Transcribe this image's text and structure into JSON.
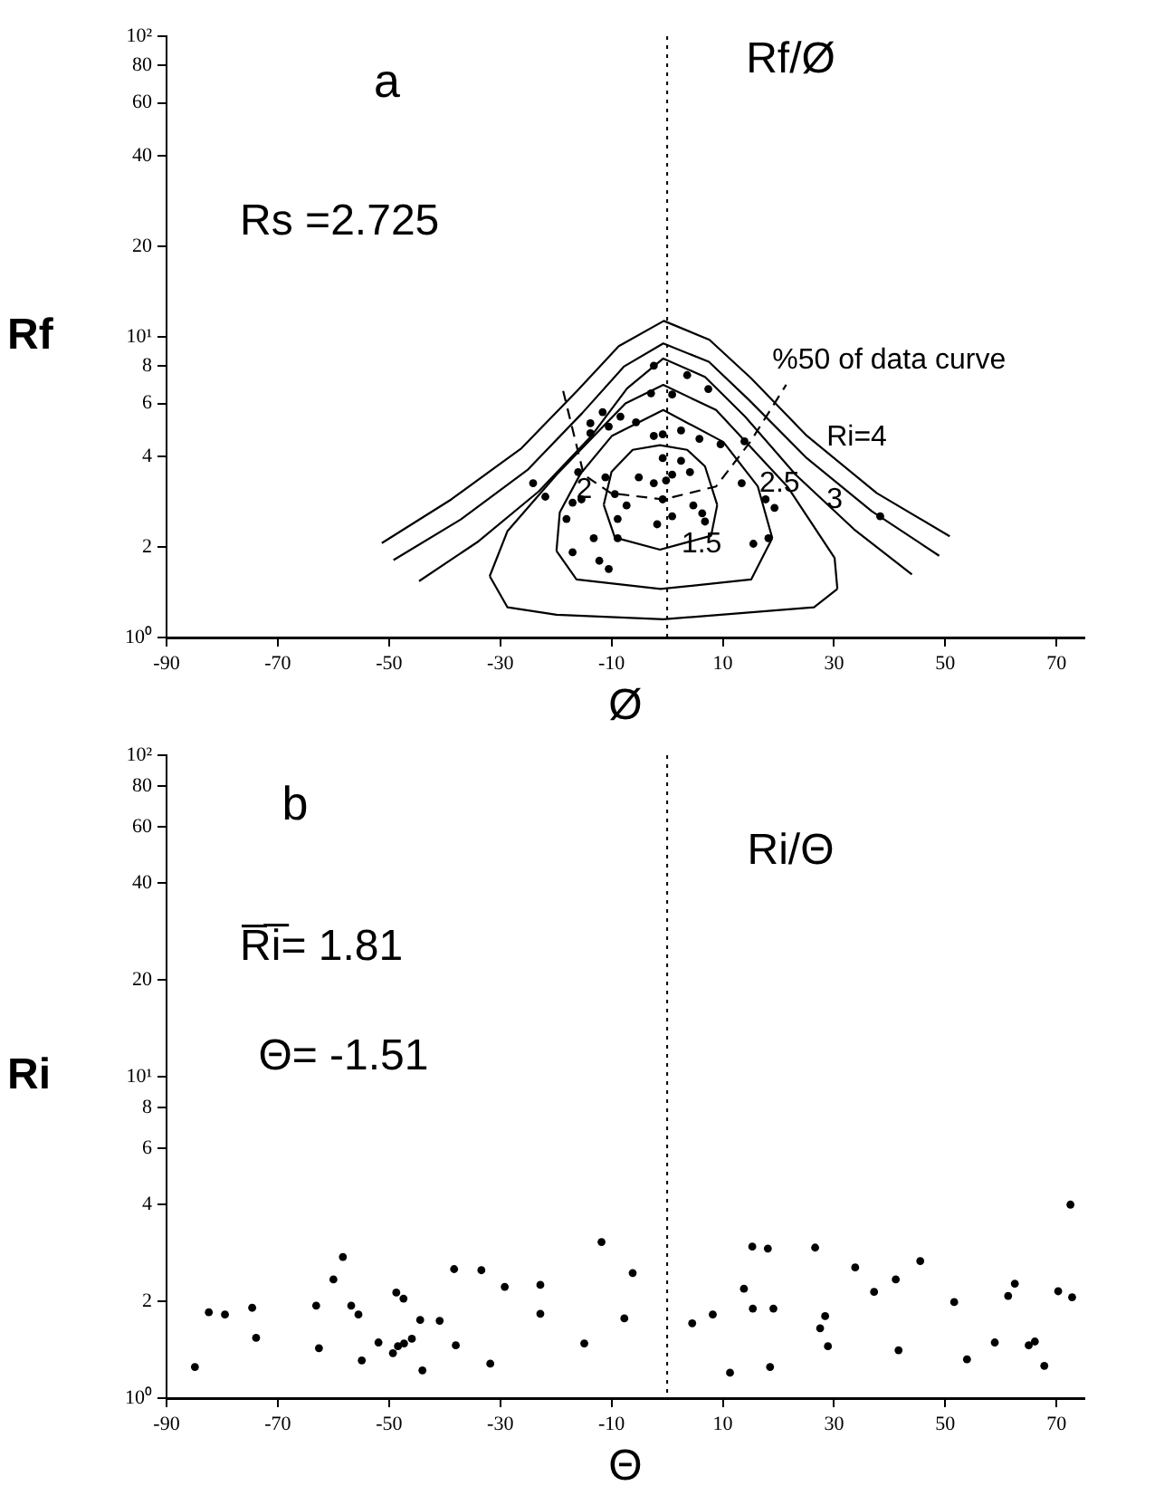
{
  "chart_data": [
    {
      "type": "scatter",
      "title": "Rf/Ø",
      "xlabel": "Ø",
      "ylabel": "Rf",
      "log": "y",
      "xlim": [
        -90,
        75
      ],
      "xticks": [
        -90,
        -70,
        -50,
        -30,
        -10,
        10,
        30,
        50,
        70
      ],
      "ylim": [
        1,
        100
      ],
      "yticks": [
        {
          "value": 1,
          "label": "10⁰"
        },
        2,
        4,
        6,
        8,
        {
          "value": 10,
          "label": "10¹"
        },
        20,
        40,
        60,
        80,
        {
          "value": 100,
          "label": "10²"
        }
      ],
      "ref_lines": [
        {
          "axis": "x",
          "value": 0,
          "line_style": "dotted"
        }
      ],
      "annotations": [
        "a",
        "Rs =2.725",
        "1.5",
        "2",
        "2.5",
        "3",
        "Ri=4",
        "%50 of data curve"
      ],
      "series": [
        {
          "marker": "circle",
          "color": "#000000",
          "x": [
            -2.4,
            3.6,
            7.4,
            -2.9,
            0.9,
            -11.6,
            -8.4,
            -13.8,
            -10.5,
            -5.6,
            -13.8,
            -2.4,
            -0.8,
            2.5,
            5.8,
            9.6,
            13.9,
            -24.1,
            -21.9,
            -17.0,
            -15.4,
            -18.1,
            -16.0,
            -11.1,
            -9.4,
            -7.3,
            -5.1,
            -2.4,
            -0.2,
            0.9,
            4.1,
            4.7,
            6.3,
            6.8,
            -0.8,
            0.9,
            -1.8,
            -8.9,
            -17.0,
            -12.2,
            -10.5,
            17.7,
            19.3,
            18.2,
            15.5,
            38.3,
            13.4,
            2.5,
            -0.8,
            -13.2,
            -8.9
          ],
          "values": [
            8.02,
            7.46,
            6.71,
            6.49,
            6.43,
            5.62,
            5.43,
            5.16,
            5.03,
            5.2,
            4.78,
            4.68,
            4.74,
            4.88,
            4.58,
            4.39,
            4.49,
            3.26,
            2.94,
            2.81,
            2.88,
            2.48,
            3.55,
            3.41,
            3.0,
            2.75,
            3.41,
            3.26,
            3.33,
            3.48,
            3.55,
            2.75,
            2.59,
            2.43,
            2.88,
            2.53,
            2.38,
            2.48,
            1.92,
            1.8,
            1.69,
            2.88,
            2.7,
            2.14,
            2.05,
            2.53,
            3.26,
            3.87,
            3.95,
            2.14,
            2.14
          ]
        },
        {
          "type": "line",
          "color": "#000000",
          "x": [
            -11.4,
            -10.0,
            -6.2,
            -1.3,
            3.6,
            6.8,
            9.0
          ],
          "values": [
            2.76,
            3.56,
            4.21,
            4.36,
            4.21,
            3.71,
            2.76
          ]
        },
        {
          "type": "line",
          "color": "#000000",
          "x": [
            -11.4,
            -9.4,
            -1.3,
            7.9,
            9.0
          ],
          "values": [
            2.76,
            2.15,
            1.96,
            2.18,
            2.76
          ]
        },
        {
          "type": "line",
          "color": "#000000",
          "x": [
            -19.9,
            -19.3,
            -15.6,
            -9.9,
            -0.7,
            10.1,
            16.3,
            18.9
          ],
          "values": [
            1.94,
            2.61,
            3.5,
            4.69,
            5.71,
            4.47,
            3.18,
            2.14
          ]
        },
        {
          "type": "line",
          "color": "#000000",
          "x": [
            -19.9,
            -16.3,
            -1.2,
            15.1,
            18.9
          ],
          "values": [
            1.94,
            1.56,
            1.45,
            1.56,
            2.14
          ]
        },
        {
          "type": "line",
          "color": "#000000",
          "x": [
            -31.9,
            -28.7,
            -19.9,
            -7.5,
            -0.7,
            8.8,
            21.6,
            30.1,
            30.6
          ],
          "values": [
            1.6,
            2.26,
            3.48,
            6.01,
            6.92,
            5.71,
            3.18,
            1.84,
            1.45
          ]
        },
        {
          "type": "line",
          "color": "#000000",
          "x": [
            -31.9,
            -28.7,
            -19.9,
            -0.7,
            26.4,
            30.6
          ],
          "values": [
            1.6,
            1.26,
            1.19,
            1.15,
            1.26,
            1.45
          ]
        },
        {
          "type": "line",
          "color": "#000000",
          "x": [
            -44.6,
            -33.9,
            -23.1,
            -13.7,
            -7.2,
            -0.7,
            6.8,
            14.0,
            23.1,
            33.6,
            44.0
          ],
          "values": [
            1.54,
            2.09,
            3.06,
            4.66,
            6.74,
            8.47,
            7.36,
            5.43,
            3.48,
            2.29,
            1.62
          ]
        },
        {
          "type": "line",
          "color": "#000000",
          "x": [
            -49.2,
            -37.1,
            -25.1,
            -15.3,
            -7.8,
            -0.7,
            7.5,
            14.7,
            25.1,
            36.8,
            48.9
          ],
          "values": [
            1.81,
            2.47,
            3.61,
            5.57,
            7.96,
            9.51,
            8.26,
            6.17,
            3.95,
            2.63,
            1.87
          ]
        },
        {
          "type": "line",
          "color": "#000000",
          "x": [
            -51.3,
            -38.8,
            -26.2,
            -16.2,
            -8.7,
            -0.6,
            7.6,
            15.1,
            25.1,
            37.7,
            50.8
          ],
          "values": [
            2.06,
            2.88,
            4.26,
            6.61,
            9.31,
            11.3,
            9.78,
            7.28,
            4.69,
            3.02,
            2.17
          ]
        },
        {
          "type": "line",
          "color": "#000000",
          "line_style": "dashed",
          "x": [
            -18.7,
            -15.0,
            -10.1,
            -0.7,
            8.8,
            15.0,
            21.4
          ],
          "values": [
            6.61,
            3.48,
            3.02,
            2.88,
            3.18,
            4.49,
            6.93
          ]
        }
      ]
    },
    {
      "type": "scatter",
      "title": "Ri/Θ",
      "xlabel": "Θ",
      "ylabel": "Ri",
      "log": "y",
      "xlim": [
        -90,
        75
      ],
      "xticks": [
        -90,
        -70,
        -50,
        -30,
        -10,
        10,
        30,
        50,
        70
      ],
      "ylim": [
        1,
        100
      ],
      "yticks": [
        {
          "value": 1,
          "label": "10⁰"
        },
        2,
        4,
        6,
        8,
        {
          "value": 10,
          "label": "10¹"
        },
        20,
        40,
        60,
        80,
        {
          "value": 100,
          "label": "10²"
        }
      ],
      "ref_lines": [
        {
          "axis": "x",
          "value": 0,
          "line_style": "dotted"
        }
      ],
      "annotations": [
        "b",
        "R̅i̅= 1.81",
        "Θ= -1.51"
      ],
      "series": [
        {
          "marker": "circle",
          "color": "#000000",
          "x": [
            -84.9,
            -82.4,
            -79.5,
            -74.6,
            -73.9,
            -63.1,
            -62.6,
            -60.0,
            -58.3,
            -56.8,
            -55.5,
            -54.9,
            -51.9,
            -48.7,
            -47.4,
            -49.3,
            -48.4,
            -47.3,
            -45.9,
            -44.4,
            -44.0,
            -40.9,
            -38.0,
            -38.3,
            -33.4,
            -31.8,
            -29.2,
            -22.8,
            -22.8,
            -14.9,
            -11.8,
            -7.7,
            -6.2,
            4.5,
            8.2,
            11.3,
            13.8,
            15.3,
            15.4,
            18.1,
            18.5,
            19.1,
            26.6,
            27.5,
            28.4,
            28.9,
            33.8,
            37.2,
            41.1,
            41.6,
            45.5,
            51.6,
            53.9,
            58.9,
            61.3,
            62.5,
            65.0,
            66.1,
            67.8,
            70.3,
            72.5,
            72.8
          ],
          "values": [
            1.25,
            1.85,
            1.82,
            1.91,
            1.54,
            1.94,
            1.43,
            2.34,
            2.75,
            1.94,
            1.82,
            1.31,
            1.49,
            2.13,
            2.04,
            1.38,
            1.45,
            1.48,
            1.53,
            1.75,
            1.22,
            1.74,
            1.46,
            2.52,
            2.5,
            1.28,
            2.22,
            2.25,
            1.83,
            1.48,
            3.06,
            1.77,
            2.45,
            1.71,
            1.82,
            1.2,
            2.19,
            2.96,
            1.9,
            2.92,
            1.25,
            1.9,
            2.94,
            1.65,
            1.8,
            1.45,
            2.55,
            2.14,
            2.34,
            1.41,
            2.67,
            1.99,
            1.32,
            1.49,
            2.08,
            2.27,
            1.46,
            1.5,
            1.26,
            2.15,
            4.0,
            2.06
          ]
        }
      ]
    }
  ]
}
